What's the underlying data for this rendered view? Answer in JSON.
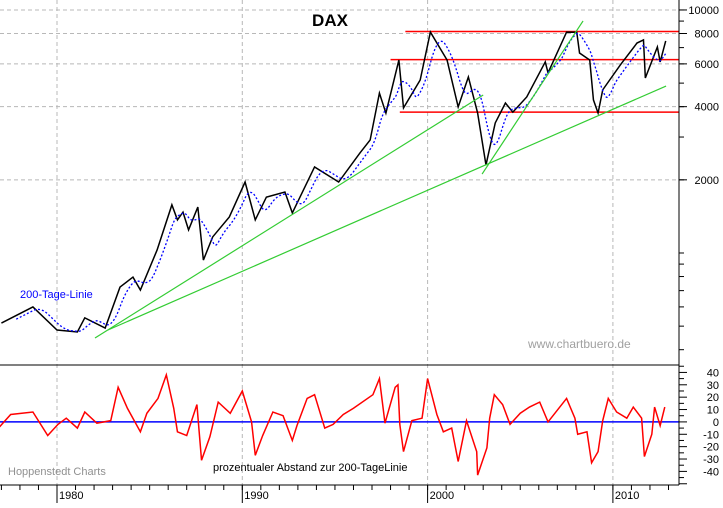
{
  "chart_data": [
    {
      "type": "line",
      "title": "DAX",
      "y_scale": "log",
      "ylim": [
        346,
        10990
      ],
      "xlim": [
        1976.9,
        2013.4
      ],
      "grid": true,
      "y_ticks": [
        {
          "value": 10000,
          "label": "10000"
        },
        {
          "value": 8000,
          "label": "8000"
        },
        {
          "value": 6000,
          "label": "6000"
        },
        {
          "value": 4000,
          "label": "4000"
        },
        {
          "value": 2000,
          "label": "2000"
        }
      ],
      "x_ticks": [
        {
          "value": 1980,
          "label": "1980"
        },
        {
          "value": 1990,
          "label": "1990"
        },
        {
          "value": 2000,
          "label": "2000"
        },
        {
          "value": 2010,
          "label": "2010"
        }
      ],
      "series": [
        {
          "color": "#000000",
          "x": [
            1977.0,
            1978.7,
            1980.0,
            1981.1,
            1981.5,
            1982.6,
            1983.4,
            1984.1,
            1984.5,
            1985.4,
            1986.2,
            1986.5,
            1986.8,
            1987.1,
            1987.6,
            1987.9,
            1988.4,
            1989.3,
            1990.15,
            1990.7,
            1991.3,
            1992.3,
            1992.7,
            1993.9,
            1995.2,
            1996.35,
            1996.9,
            1997.4,
            1997.75,
            1998.45,
            1998.7,
            1999.6,
            2000.15,
            2001.05,
            2001.65,
            2002.2,
            2002.7,
            2003.15,
            2003.65,
            2004.2,
            2004.6,
            2005.35,
            2006.35,
            2006.5,
            2007.5,
            2008.05,
            2008.2,
            2008.75,
            2008.95,
            2009.2,
            2009.45,
            2010.4,
            2011.3,
            2011.65,
            2011.75,
            2012.4,
            2012.55,
            2012.85
          ],
          "y": [
            515,
            600,
            482,
            473,
            541,
            491,
            724,
            796,
            704,
            1028,
            1578,
            1368,
            1473,
            1245,
            1545,
            935,
            1164,
            1407,
            1959,
            1368,
            1698,
            1782,
            1462,
            2259,
            1959,
            2580,
            2918,
            4547,
            3764,
            6223,
            3953,
            5150,
            8110,
            6223,
            3990,
            5300,
            3764,
            2301,
            3428,
            4140,
            3800,
            4385,
            6110,
            5510,
            8110,
            8100,
            6650,
            6223,
            4265,
            3764,
            4690,
            5940,
            7310,
            7530,
            5250,
            7040,
            6110,
            7460
          ]
        },
        {
          "name": "200-Tage-Linie",
          "color": "#0000ff",
          "style": "dotted",
          "derived_from": "200-day moving average of price"
        }
      ],
      "horizontal_lines": [
        {
          "value": 8150,
          "x_start": 1998.8,
          "color": "#ff0000"
        },
        {
          "value": 6250,
          "x_start": 1998.0,
          "color": "#ff0000"
        },
        {
          "value": 3800,
          "x_start": 1998.5,
          "color": "#ff0000"
        }
      ],
      "trend_lines": [
        {
          "color": "#33cc33",
          "x": [
            1982.05,
            2003.0
          ],
          "y": [
            447,
            4467
          ]
        },
        {
          "color": "#33cc33",
          "x": [
            1982.75,
            2012.87
          ],
          "y": [
            482,
            4864
          ]
        },
        {
          "color": "#33cc33",
          "x": [
            2002.94,
            2008.39
          ],
          "y": [
            2113,
            9010
          ]
        }
      ],
      "annotations": {
        "ma_label": "200-Tage-Linie",
        "watermark": "www.chartbuero.de"
      }
    },
    {
      "type": "line",
      "title": "prozentualer Abstand zur 200-TageLinie",
      "ylim": [
        -51,
        46
      ],
      "y_ticks": [
        40,
        30,
        20,
        10,
        0,
        -10,
        -20,
        -30,
        -40
      ],
      "zero_line_color": "#0000ff",
      "series": [
        {
          "color": "#ff0000",
          "x": [
            1976.9,
            1977.5,
            1978.7,
            1979.5,
            1980.05,
            1980.5,
            1981.1,
            1981.5,
            1982.15,
            1982.9,
            1983.3,
            1983.8,
            1984.5,
            1984.85,
            1985.45,
            1985.9,
            1986.3,
            1986.5,
            1987.0,
            1987.55,
            1987.8,
            1988.25,
            1988.7,
            1989.35,
            1990.0,
            1990.5,
            1990.7,
            1991.1,
            1991.65,
            1992.2,
            1992.7,
            1992.95,
            1993.5,
            1993.9,
            1994.45,
            1994.9,
            1995.45,
            1996.0,
            1997.05,
            1997.4,
            1997.7,
            1998.25,
            1998.4,
            1998.5,
            1998.7,
            1999.15,
            1999.7,
            2000.0,
            2000.5,
            2000.85,
            2001.3,
            2001.65,
            2002.1,
            2002.65,
            2002.7,
            2003.2,
            2003.35,
            2003.6,
            2004.05,
            2004.45,
            2005.0,
            2005.5,
            2006.05,
            2006.5,
            2007.5,
            2007.95,
            2008.1,
            2008.6,
            2008.85,
            2009.2,
            2009.45,
            2009.75,
            2010.2,
            2010.75,
            2011.1,
            2011.55,
            2011.7,
            2012.1,
            2012.25,
            2012.55,
            2012.8
          ],
          "y": [
            -4,
            6,
            8,
            -11,
            -2,
            3,
            -5,
            8,
            -1,
            1,
            28,
            11,
            -8,
            7,
            19,
            38,
            11,
            -8,
            -11,
            14,
            -31,
            -12,
            16,
            7,
            25,
            0,
            -27,
            -11,
            8,
            5,
            -15,
            -3,
            19,
            22,
            -5,
            -2,
            6,
            11,
            22,
            35,
            -1,
            28,
            30,
            -2,
            -24,
            1,
            3,
            35,
            6,
            -8,
            -5,
            -32,
            1,
            -24,
            -43,
            -21,
            3,
            22,
            14,
            -2,
            7,
            12,
            16,
            0,
            19,
            3,
            -10,
            -8,
            -33,
            -24,
            1,
            19,
            8,
            3,
            12,
            3,
            -28,
            -10,
            12,
            -3,
            12
          ]
        }
      ],
      "annotations": {
        "source": "Hoppenstedt Charts"
      }
    }
  ]
}
